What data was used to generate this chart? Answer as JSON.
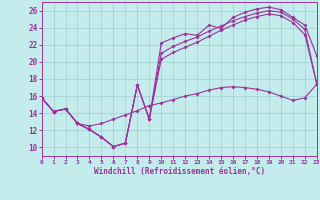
{
  "xlabel": "Windchill (Refroidissement éolien,°C)",
  "xlim": [
    0,
    23
  ],
  "ylim": [
    9,
    27
  ],
  "xticks": [
    0,
    1,
    2,
    3,
    4,
    5,
    6,
    7,
    8,
    9,
    10,
    11,
    12,
    13,
    14,
    15,
    16,
    17,
    18,
    19,
    20,
    21,
    22,
    23
  ],
  "yticks": [
    10,
    12,
    14,
    16,
    18,
    20,
    22,
    24,
    26
  ],
  "bg_color": "#c5ecec",
  "line_color": "#993399",
  "grid_color": "#9fcfcf",
  "lines": [
    {
      "x": [
        0,
        1,
        2,
        3,
        4,
        5,
        6,
        7,
        8,
        9,
        10,
        11,
        12,
        13,
        14,
        15,
        16,
        17,
        18,
        19,
        20,
        21,
        22,
        23
      ],
      "y": [
        15.8,
        14.2,
        14.5,
        12.8,
        12.1,
        11.2,
        10.1,
        10.5,
        17.3,
        13.3,
        22.2,
        22.8,
        23.3,
        23.1,
        24.3,
        23.9,
        25.2,
        25.8,
        26.2,
        26.4,
        26.1,
        25.2,
        24.3,
        20.7
      ]
    },
    {
      "x": [
        0,
        1,
        2,
        3,
        4,
        5,
        6,
        7,
        8,
        9,
        10,
        11,
        12,
        13,
        14,
        15,
        16,
        17,
        18,
        19,
        20,
        21,
        22,
        23
      ],
      "y": [
        15.8,
        14.2,
        14.5,
        12.8,
        12.1,
        11.2,
        10.1,
        10.5,
        17.3,
        13.3,
        21.0,
        21.8,
        22.4,
        22.9,
        23.6,
        24.2,
        24.8,
        25.3,
        25.7,
        26.0,
        25.8,
        25.0,
        23.8,
        17.4
      ]
    },
    {
      "x": [
        0,
        1,
        2,
        3,
        4,
        5,
        6,
        7,
        8,
        9,
        10,
        11,
        12,
        13,
        14,
        15,
        16,
        17,
        18,
        19,
        20,
        21,
        22,
        23
      ],
      "y": [
        15.8,
        14.2,
        14.5,
        12.8,
        12.1,
        11.2,
        10.1,
        10.5,
        17.3,
        13.3,
        20.3,
        21.1,
        21.7,
        22.3,
        23.0,
        23.7,
        24.3,
        24.9,
        25.3,
        25.6,
        25.4,
        24.6,
        23.2,
        17.4
      ]
    },
    {
      "x": [
        0,
        1,
        2,
        3,
        4,
        5,
        6,
        7,
        8,
        9,
        10,
        11,
        12,
        13,
        14,
        15,
        16,
        17,
        18,
        19,
        20,
        21,
        22,
        23
      ],
      "y": [
        15.8,
        14.2,
        14.5,
        12.8,
        12.5,
        12.8,
        13.3,
        13.8,
        14.3,
        14.9,
        15.2,
        15.6,
        16.0,
        16.3,
        16.7,
        17.0,
        17.1,
        17.0,
        16.8,
        16.5,
        16.0,
        15.5,
        15.8,
        17.4
      ]
    }
  ]
}
